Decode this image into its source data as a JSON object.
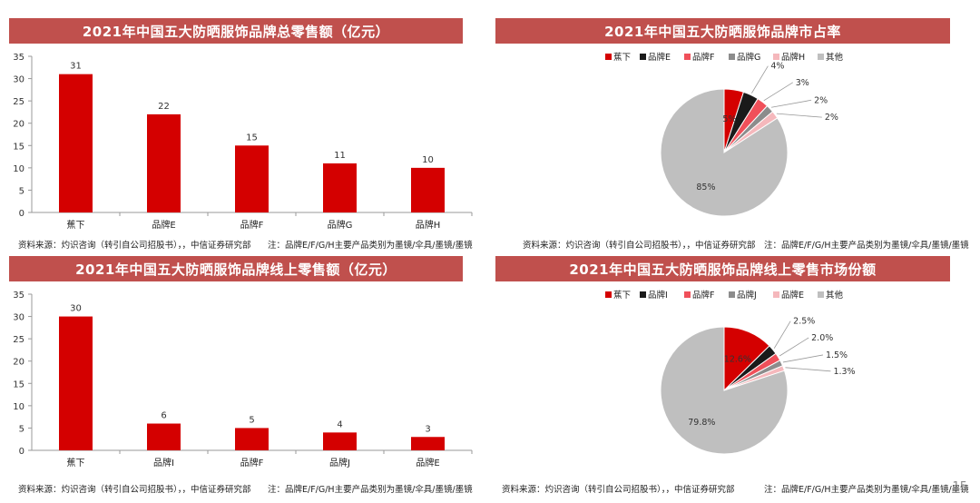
{
  "page_number": "15",
  "panels": [
    {
      "banner": "2021年中国五大防晒服饰品牌总零售额（亿元）",
      "source": "资料来源：灼识咨询（转引自公司招股书），，中信证券研究部",
      "note": "注：品牌E/F/G/H主要产品类别为墨镜/伞具/墨镜/墨镜"
    },
    {
      "banner": "2021年中国五大防晒服饰品牌市占率",
      "source": "资料来源：灼识咨询（转引自公司招股书），，中信证券研究部",
      "note": "注：品牌E/F/G/H主要产品类别为墨镜/伞具/墨镜/墨镜"
    },
    {
      "banner": "2021年中国五大防晒服饰品牌线上零售额（亿元）",
      "source": "资料来源：灼识咨询（转引自公司招股书），，中信证券研究部",
      "note": "注：品牌E/F/G/H主要产品类别为墨镜/伞具/墨镜/墨镜"
    },
    {
      "banner": "2021年中国五大防晒服饰品牌线上零售市场份额",
      "source": "资料来源：灼识咨询（转引自公司招股书），，中信证券研究部",
      "note": "注：品牌E/F/G/H主要产品类别为墨镜/伞具/墨镜/墨镜"
    }
  ],
  "chart_data": [
    {
      "type": "bar",
      "title": "2021年中国五大防晒服饰品牌总零售额（亿元）",
      "categories": [
        "蕉下",
        "品牌E",
        "品牌F",
        "品牌G",
        "品牌H"
      ],
      "values": [
        31,
        22,
        15,
        11,
        10
      ],
      "ylim": [
        0,
        35
      ],
      "yticks": [
        0,
        5,
        10,
        15,
        20,
        25,
        30,
        35
      ],
      "color": "#d40000"
    },
    {
      "type": "pie",
      "title": "2021年中国五大防晒服饰品牌市占率",
      "labels": [
        "蕉下",
        "品牌E",
        "品牌F",
        "品牌G",
        "品牌H",
        "其他"
      ],
      "values": [
        5,
        4,
        3,
        2,
        2,
        85
      ],
      "value_labels": [
        "5%",
        "4%",
        "3%",
        "2%",
        "2%",
        "85%"
      ],
      "colors": [
        "#d40000",
        "#1a1a1a",
        "#f0505a",
        "#8c8c8c",
        "#f5b8bc",
        "#bfbfbf"
      ],
      "legend": "top"
    },
    {
      "type": "bar",
      "title": "2021年中国五大防晒服饰品牌线上零售额（亿元）",
      "categories": [
        "蕉下",
        "品牌I",
        "品牌F",
        "品牌J",
        "品牌E"
      ],
      "values": [
        30,
        6,
        5,
        4,
        3
      ],
      "ylim": [
        0,
        35
      ],
      "yticks": [
        0,
        5,
        10,
        15,
        20,
        25,
        30,
        35
      ],
      "color": "#d40000"
    },
    {
      "type": "pie",
      "title": "2021年中国五大防晒服饰品牌线上零售市场份额",
      "labels": [
        "蕉下",
        "品牌I",
        "品牌F",
        "品牌J",
        "品牌E",
        "其他"
      ],
      "values": [
        12.6,
        2.5,
        2.0,
        1.5,
        1.3,
        79.8
      ],
      "value_labels": [
        "12.6%",
        "2.5%",
        "2.0%",
        "1.5%",
        "1.3%",
        "79.8%"
      ],
      "colors": [
        "#d40000",
        "#1a1a1a",
        "#f0505a",
        "#8c8c8c",
        "#f5b8bc",
        "#bfbfbf"
      ],
      "legend": "top"
    }
  ]
}
